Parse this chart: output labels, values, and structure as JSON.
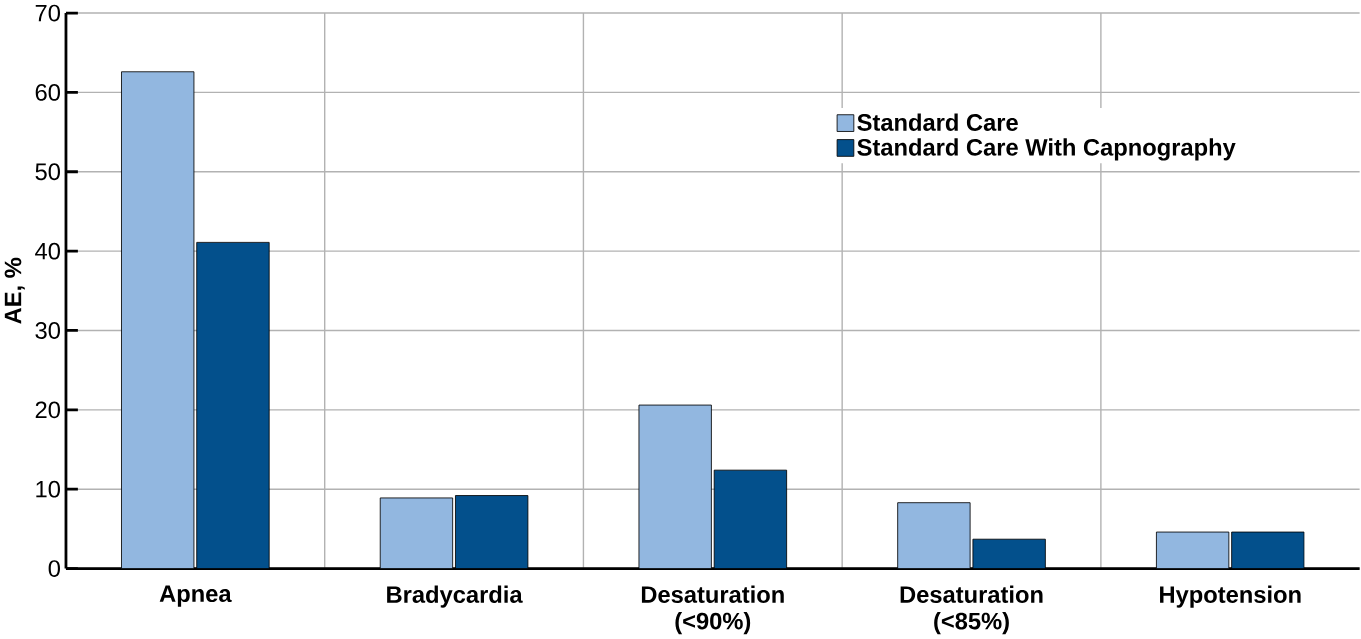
{
  "chart_data": {
    "type": "bar",
    "ylabel": "AE, %",
    "categories": [
      "Apnea",
      "Bradycardia",
      "Desaturation (<90%)",
      "Desaturation (<85%)",
      "Hypotension"
    ],
    "series": [
      {
        "name": "Standard Care",
        "color": "#92b7e0",
        "values": [
          62.6,
          8.9,
          20.6,
          8.3,
          4.6
        ]
      },
      {
        "name": "Standard Care With Capnography",
        "color": "#03508c",
        "values": [
          41.1,
          9.2,
          12.4,
          3.7,
          4.6
        ]
      }
    ],
    "ylim": [
      0,
      70
    ],
    "yticks": [
      0,
      10,
      20,
      30,
      40,
      50,
      60,
      70
    ],
    "grid": true,
    "legend": "top right"
  }
}
